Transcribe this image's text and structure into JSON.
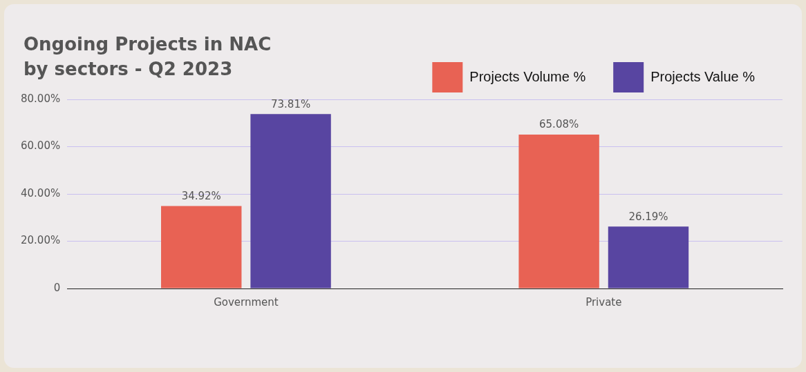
{
  "chart_data": {
    "type": "bar",
    "title": "Ongoing Projects in NAC\nby sectors - Q2 2023",
    "categories": [
      "Government",
      "Private"
    ],
    "series": [
      {
        "name": "Projects Volume %",
        "color": "#e86254",
        "values": [
          34.92,
          65.08
        ],
        "value_labels": [
          "34.92%",
          "65.08%"
        ]
      },
      {
        "name": "Projects Value %",
        "color": "#5845a1",
        "values": [
          73.81,
          26.19
        ],
        "value_labels": [
          "73.81%",
          "26.19%"
        ]
      }
    ],
    "ylim": [
      0,
      80
    ],
    "yticks": [
      {
        "value": 0,
        "label": "0"
      },
      {
        "value": 20,
        "label": "20.00%"
      },
      {
        "value": 40,
        "label": "40.00%"
      },
      {
        "value": 60,
        "label": "60.00%"
      },
      {
        "value": 80,
        "label": "80.00%"
      }
    ],
    "grid": "y",
    "legend": "top right",
    "data_labels": true
  }
}
